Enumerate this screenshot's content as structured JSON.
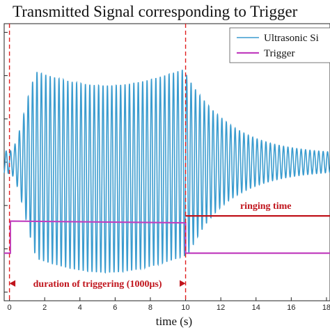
{
  "chart_data": {
    "type": "line",
    "title": "Transmitted Signal corresponding to Trigger",
    "xlabel": "time (s)",
    "ylabel": "",
    "xlim": [
      -0.3,
      18.2
    ],
    "xticks": [
      0,
      2,
      4,
      6,
      8,
      10,
      12,
      14,
      16,
      18
    ],
    "xtick_labels": [
      "0",
      "2",
      "4",
      "6",
      "8",
      "10",
      "12",
      "14",
      "16",
      "18"
    ],
    "ylim": [
      -1.6,
      1.6
    ],
    "grid": false,
    "legend_position": "top-right",
    "series": [
      {
        "name": "Ultrasonic Si",
        "color": "#3b9ccf",
        "description_values": {
          "frequency_cycles_per_unit": 4.0,
          "burst_start": 0,
          "burst_end": 10,
          "amplitude_plateau": 1.0,
          "decay_end": 18.2
        }
      },
      {
        "name": "Trigger",
        "color": "#c13fbf",
        "values_step": [
          {
            "x": -0.3,
            "y": -1.05
          },
          {
            "x": 0.05,
            "y": -1.05
          },
          {
            "x": 0.05,
            "y": -0.68
          },
          {
            "x": 10.0,
            "y": -0.7
          },
          {
            "x": 10.0,
            "y": -1.05
          },
          {
            "x": 18.2,
            "y": -1.05
          }
        ]
      }
    ],
    "annotations": {
      "triggering_label": "duration of triggering (1000μs)",
      "ringing_label": "ringing time",
      "vlines_x": [
        0,
        10
      ]
    }
  }
}
